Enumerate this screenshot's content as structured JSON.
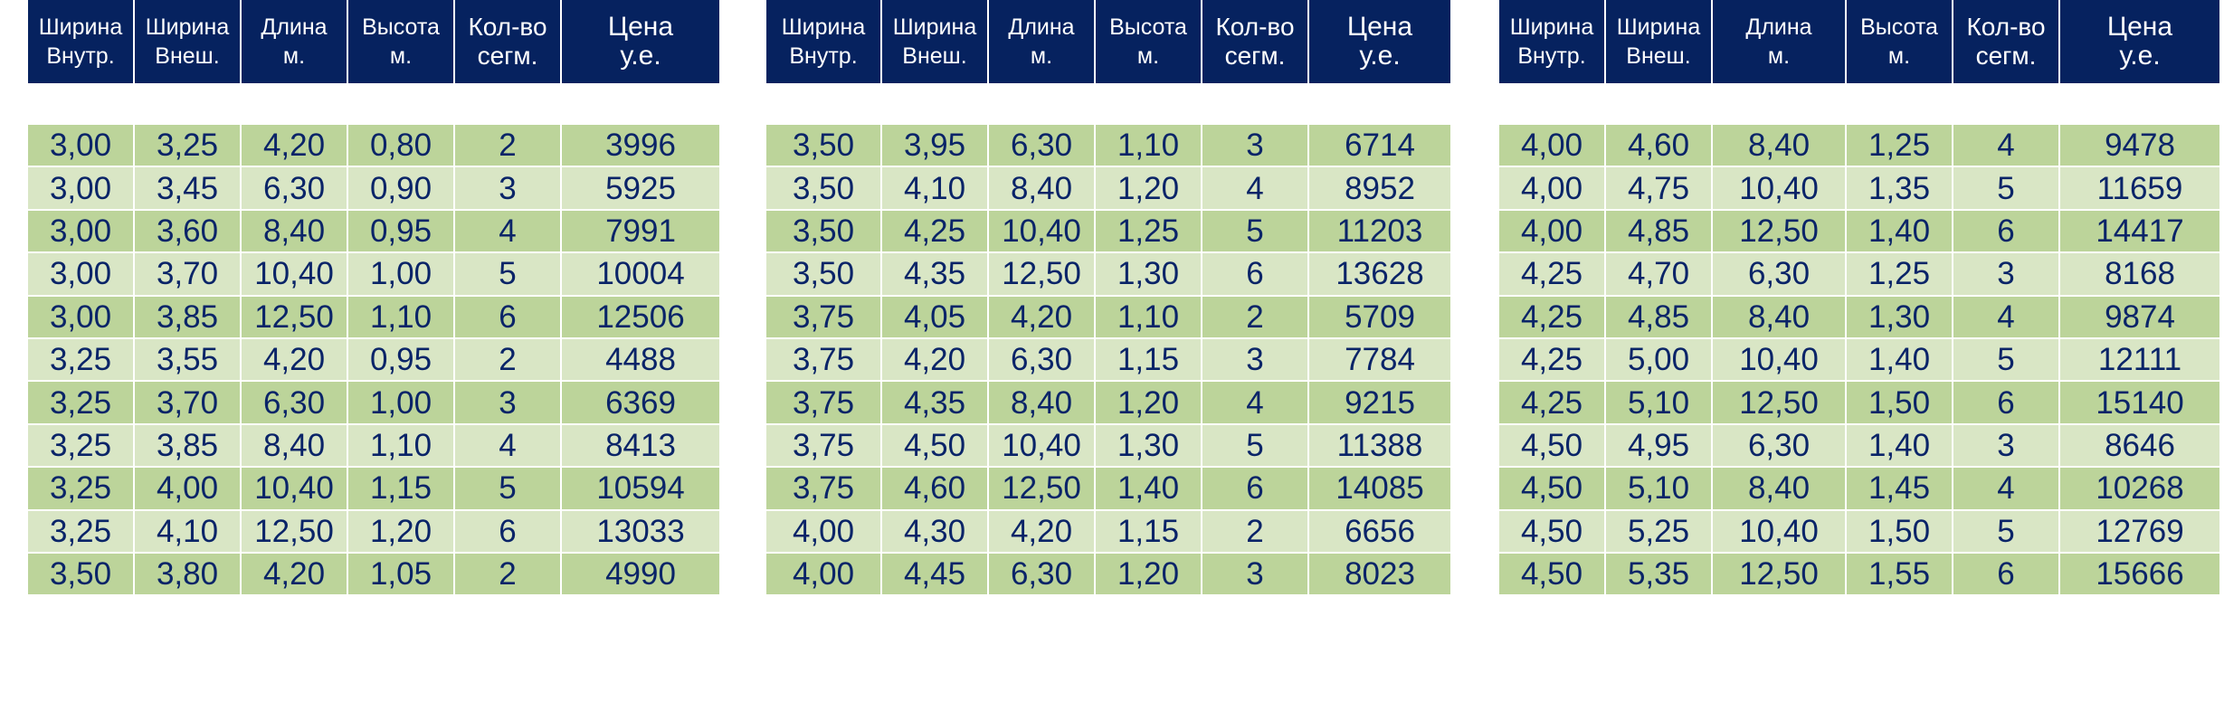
{
  "tables": [
    {
      "headers": [
        [
          "Ширина",
          "Внутр."
        ],
        [
          "Ширина",
          "Внеш."
        ],
        [
          "Длина",
          "м."
        ],
        [
          "Высота",
          "м."
        ],
        [
          "Кол-во",
          "сегм."
        ],
        [
          "Цена",
          "у.е."
        ]
      ],
      "rows": [
        [
          "3,00",
          "3,25",
          "4,20",
          "0,80",
          "2",
          "3996"
        ],
        [
          "3,00",
          "3,45",
          "6,30",
          "0,90",
          "3",
          "5925"
        ],
        [
          "3,00",
          "3,60",
          "8,40",
          "0,95",
          "4",
          "7991"
        ],
        [
          "3,00",
          "3,70",
          "10,40",
          "1,00",
          "5",
          "10004"
        ],
        [
          "3,00",
          "3,85",
          "12,50",
          "1,10",
          "6",
          "12506"
        ],
        [
          "3,25",
          "3,55",
          "4,20",
          "0,95",
          "2",
          "4488"
        ],
        [
          "3,25",
          "3,70",
          "6,30",
          "1,00",
          "3",
          "6369"
        ],
        [
          "3,25",
          "3,85",
          "8,40",
          "1,10",
          "4",
          "8413"
        ],
        [
          "3,25",
          "4,00",
          "10,40",
          "1,15",
          "5",
          "10594"
        ],
        [
          "3,25",
          "4,10",
          "12,50",
          "1,20",
          "6",
          "13033"
        ],
        [
          "3,50",
          "3,80",
          "4,20",
          "1,05",
          "2",
          "4990"
        ]
      ]
    },
    {
      "headers": [
        [
          "Ширина",
          "Внутр."
        ],
        [
          "Ширина",
          "Внеш."
        ],
        [
          "Длина",
          "м."
        ],
        [
          "Высота",
          "м."
        ],
        [
          "Кол-во",
          "сегм."
        ],
        [
          "Цена",
          "у.е."
        ]
      ],
      "rows": [
        [
          "3,50",
          "3,95",
          "6,30",
          "1,10",
          "3",
          "6714"
        ],
        [
          "3,50",
          "4,10",
          "8,40",
          "1,20",
          "4",
          "8952"
        ],
        [
          "3,50",
          "4,25",
          "10,40",
          "1,25",
          "5",
          "11203"
        ],
        [
          "3,50",
          "4,35",
          "12,50",
          "1,30",
          "6",
          "13628"
        ],
        [
          "3,75",
          "4,05",
          "4,20",
          "1,10",
          "2",
          "5709"
        ],
        [
          "3,75",
          "4,20",
          "6,30",
          "1,15",
          "3",
          "7784"
        ],
        [
          "3,75",
          "4,35",
          "8,40",
          "1,20",
          "4",
          "9215"
        ],
        [
          "3,75",
          "4,50",
          "10,40",
          "1,30",
          "5",
          "11388"
        ],
        [
          "3,75",
          "4,60",
          "12,50",
          "1,40",
          "6",
          "14085"
        ],
        [
          "4,00",
          "4,30",
          "4,20",
          "1,15",
          "2",
          "6656"
        ],
        [
          "4,00",
          "4,45",
          "6,30",
          "1,20",
          "3",
          "8023"
        ]
      ]
    },
    {
      "headers": [
        [
          "Ширина",
          "Внутр."
        ],
        [
          "Ширина",
          "Внеш."
        ],
        [
          "Длина",
          "м."
        ],
        [
          "Высота",
          "м."
        ],
        [
          "Кол-во",
          "сегм."
        ],
        [
          "Цена",
          "у.е."
        ]
      ],
      "rows": [
        [
          "4,00",
          "4,60",
          "8,40",
          "1,25",
          "4",
          "9478"
        ],
        [
          "4,00",
          "4,75",
          "10,40",
          "1,35",
          "5",
          "11659"
        ],
        [
          "4,00",
          "4,85",
          "12,50",
          "1,40",
          "6",
          "14417"
        ],
        [
          "4,25",
          "4,70",
          "6,30",
          "1,25",
          "3",
          "8168"
        ],
        [
          "4,25",
          "4,85",
          "8,40",
          "1,30",
          "4",
          "9874"
        ],
        [
          "4,25",
          "5,00",
          "10,40",
          "1,40",
          "5",
          "12111"
        ],
        [
          "4,25",
          "5,10",
          "12,50",
          "1,50",
          "6",
          "15140"
        ],
        [
          "4,50",
          "4,95",
          "6,30",
          "1,40",
          "3",
          "8646"
        ],
        [
          "4,50",
          "5,10",
          "8,40",
          "1,45",
          "4",
          "10268"
        ],
        [
          "4,50",
          "5,25",
          "10,40",
          "1,50",
          "5",
          "12769"
        ],
        [
          "4,50",
          "5,35",
          "12,50",
          "1,55",
          "6",
          "15666"
        ]
      ]
    }
  ],
  "colors": {
    "header_bg": "#06225f",
    "header_text": "#ffffff",
    "row_odd": "#bcd49a",
    "row_even": "#d9e6c5",
    "cell_text": "#0a2468"
  }
}
